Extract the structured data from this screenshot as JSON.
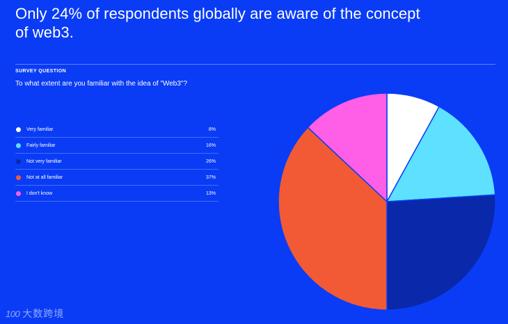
{
  "headline": "Only 24% of respondents globally are aware of the concept of web3.",
  "survey": {
    "label": "SURVEY QUESTION",
    "question": "To what extent are you familiar with the idea of \"Web3\"?"
  },
  "chart_data": {
    "type": "pie",
    "title": "",
    "start": "12 o'clock, clockwise",
    "categories": [
      "Very familiar",
      "Fairly familiar",
      "Not very familiar",
      "Not at all familiar",
      "I don't know"
    ],
    "values": [
      8,
      16,
      26,
      37,
      13
    ],
    "value_labels": [
      "8%",
      "16%",
      "26%",
      "37%",
      "13%"
    ],
    "colors": [
      "#ffffff",
      "#5ee0ff",
      "#0a28aa",
      "#f25a35",
      "#ff5ee6"
    ]
  },
  "watermark": {
    "logo": "100",
    "text": "大数跨境"
  }
}
